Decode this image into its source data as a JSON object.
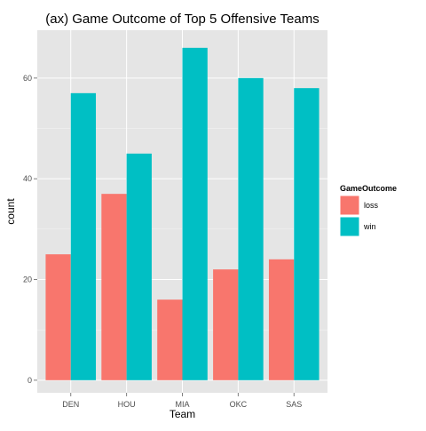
{
  "chart_data": {
    "type": "bar",
    "title": "(ax) Game Outcome of Top 5 Offensive Teams",
    "xlabel": "Team",
    "ylabel": "count",
    "categories": [
      "DEN",
      "HOU",
      "MIA",
      "OKC",
      "SAS"
    ],
    "series": [
      {
        "name": "loss",
        "color": "#F8766D",
        "values": [
          25,
          37,
          16,
          22,
          24
        ]
      },
      {
        "name": "win",
        "color": "#00BFC4",
        "values": [
          57,
          45,
          66,
          60,
          58
        ]
      }
    ],
    "y_ticks": [
      0,
      20,
      40,
      60
    ],
    "ylim": [
      -2.5,
      69.5
    ],
    "grid": true,
    "legend": {
      "title": "GameOutcome",
      "placement": "right"
    },
    "panel_background": "#E5E5E5",
    "gridline_color": "#FFFFFF"
  }
}
